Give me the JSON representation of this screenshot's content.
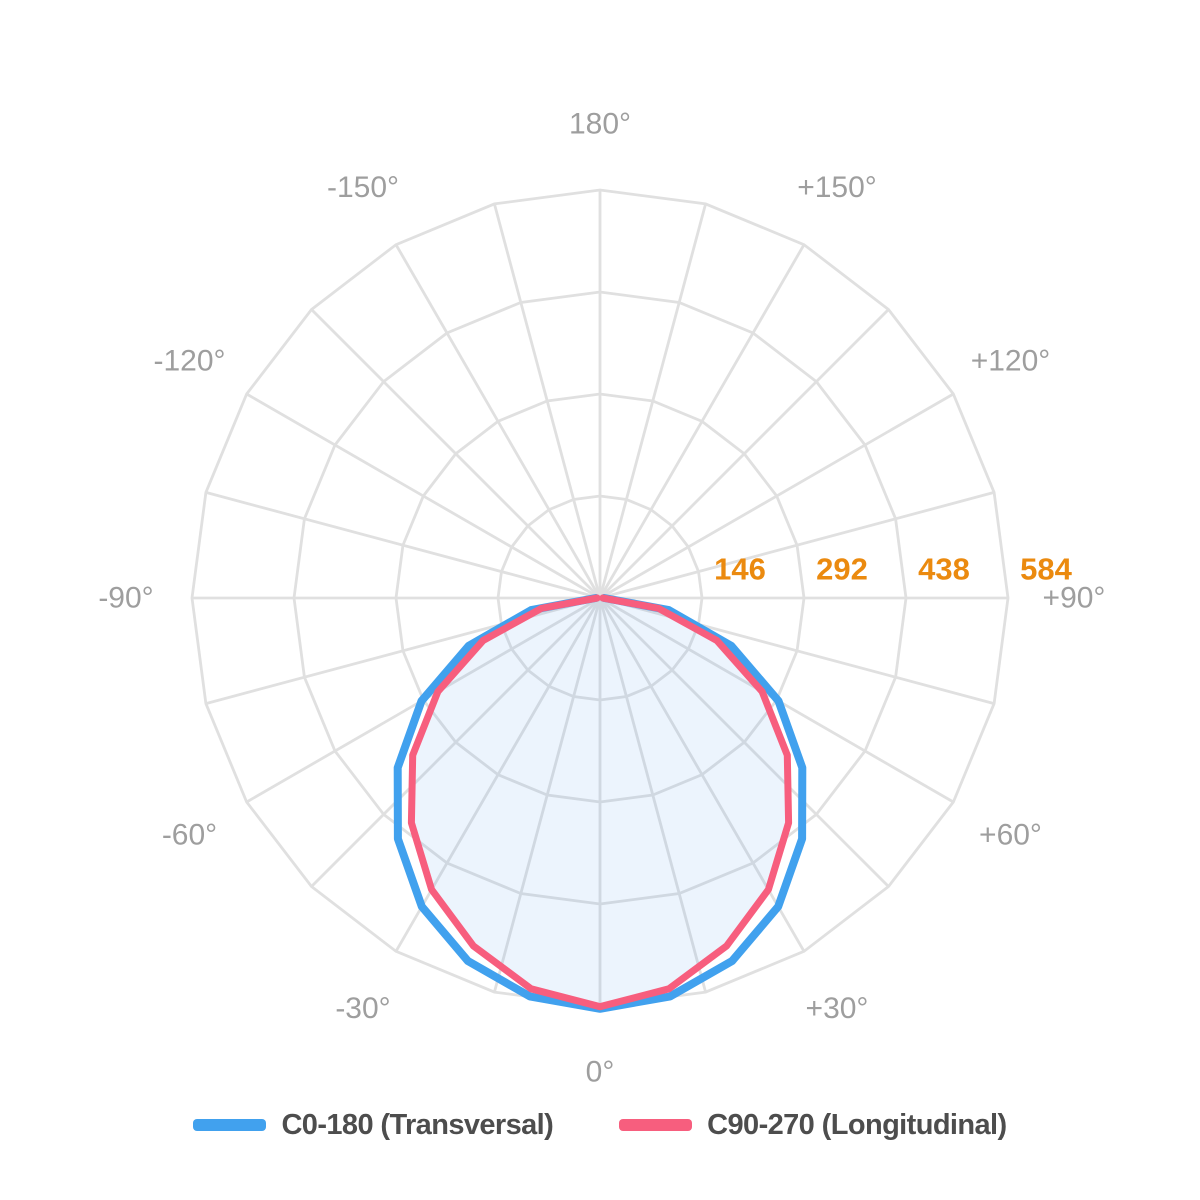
{
  "page": {
    "background_color": "#ffffff"
  },
  "chart_data": {
    "type": "line",
    "coordinate_system": "polar",
    "description": "Luminaire photometric light distribution polar curve, 0° at bottom (nadir), 180° at top",
    "grid": {
      "angle_step_deg": 15,
      "ring_count": 4,
      "color": "#e0e0e0",
      "show": true
    },
    "angle_axis": {
      "unit": "deg",
      "label_color": "#9e9e9e",
      "labels": [
        {
          "angle": 0,
          "label": "0°"
        },
        {
          "angle": 30,
          "label": "+30°"
        },
        {
          "angle": -30,
          "label": "-30°"
        },
        {
          "angle": 60,
          "label": "+60°"
        },
        {
          "angle": -60,
          "label": "-60°"
        },
        {
          "angle": 90,
          "label": "+90°"
        },
        {
          "angle": -90,
          "label": "-90°"
        },
        {
          "angle": 120,
          "label": "+120°"
        },
        {
          "angle": -120,
          "label": "-120°"
        },
        {
          "angle": 150,
          "label": "+150°"
        },
        {
          "angle": -150,
          "label": "-150°"
        },
        {
          "angle": 180,
          "label": "180°"
        }
      ]
    },
    "radial_axis": {
      "ticks": [
        146,
        292,
        438,
        584
      ],
      "max": 584,
      "tick_color": "#eb8a0f"
    },
    "series": [
      {
        "name": "C0-180 (Transversal)",
        "color": "#41a1ee",
        "stroke_width": 8,
        "fill": "none",
        "angles_deg": [
          -90,
          -80,
          -70,
          -60,
          -50,
          -40,
          -30,
          -20,
          -10,
          0,
          10,
          20,
          30,
          40,
          50,
          60,
          70,
          80,
          90
        ],
        "values": [
          6,
          100,
          200,
          295,
          378,
          450,
          510,
          553,
          579,
          588,
          579,
          553,
          510,
          450,
          378,
          295,
          200,
          100,
          6
        ]
      },
      {
        "name": "C90-270 (Longitudinal)",
        "color": "#f75e7e",
        "stroke_width": 7,
        "fill": "rgba(66, 150, 235, 0.10)",
        "angles_deg": [
          -90,
          -80,
          -70,
          -60,
          -50,
          -40,
          -30,
          -20,
          -10,
          0,
          10,
          20,
          30,
          40,
          50,
          60,
          70,
          80,
          90
        ],
        "values": [
          4,
          85,
          178,
          268,
          350,
          420,
          482,
          530,
          568,
          585,
          568,
          530,
          482,
          420,
          350,
          268,
          178,
          85,
          4
        ]
      }
    ],
    "legend_position": "bottom"
  }
}
